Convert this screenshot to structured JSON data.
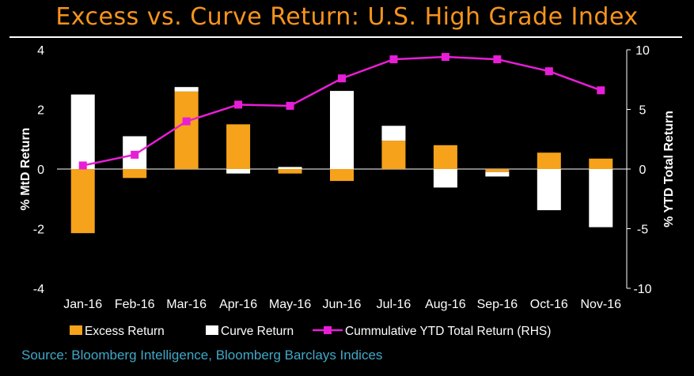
{
  "title": "Excess vs. Curve Return: U.S. High Grade Index",
  "source": "Source: Bloomberg Intelligence, Bloomberg Barclays Indices",
  "colors": {
    "excess": "#f7a21b",
    "curve": "#ffffff",
    "cumulative": "#e81ed6",
    "title": "#f7941d",
    "source": "#3fa9c9",
    "background": "#000000"
  },
  "chart_data": {
    "type": "bar",
    "categories": [
      "Jan-16",
      "Feb-16",
      "Mar-16",
      "Apr-16",
      "May-16",
      "Jun-16",
      "Jul-16",
      "Aug-16",
      "Sep-16",
      "Oct-16",
      "Nov-16"
    ],
    "series": [
      {
        "name": "Excess Return",
        "type": "bar",
        "axis": "left",
        "values": [
          -2.15,
          -0.3,
          2.6,
          1.5,
          -0.15,
          -0.4,
          0.95,
          0.8,
          -0.1,
          0.55,
          0.35
        ]
      },
      {
        "name": "Curve Return",
        "type": "bar",
        "axis": "left",
        "values": [
          2.5,
          1.1,
          0.15,
          -0.15,
          0.07,
          2.62,
          0.5,
          -0.62,
          -0.15,
          -1.38,
          -1.95
        ]
      },
      {
        "name": "Cummulative YTD Total Return (RHS)",
        "type": "line",
        "axis": "right",
        "values": [
          0.3,
          1.2,
          4.0,
          5.4,
          5.3,
          7.6,
          9.2,
          9.4,
          9.2,
          8.2,
          6.6
        ]
      }
    ],
    "ylabel": "% MtD Return",
    "y2label": "% YTD Total Return",
    "ylim": [
      -4,
      4
    ],
    "y2lim": [
      -10,
      10
    ],
    "yticks": [
      "4",
      "2",
      "0",
      "-2",
      "-4"
    ],
    "y2ticks": [
      "10",
      "5",
      "0",
      "-5",
      "-10"
    ],
    "grid": false,
    "legend": "bottom"
  }
}
